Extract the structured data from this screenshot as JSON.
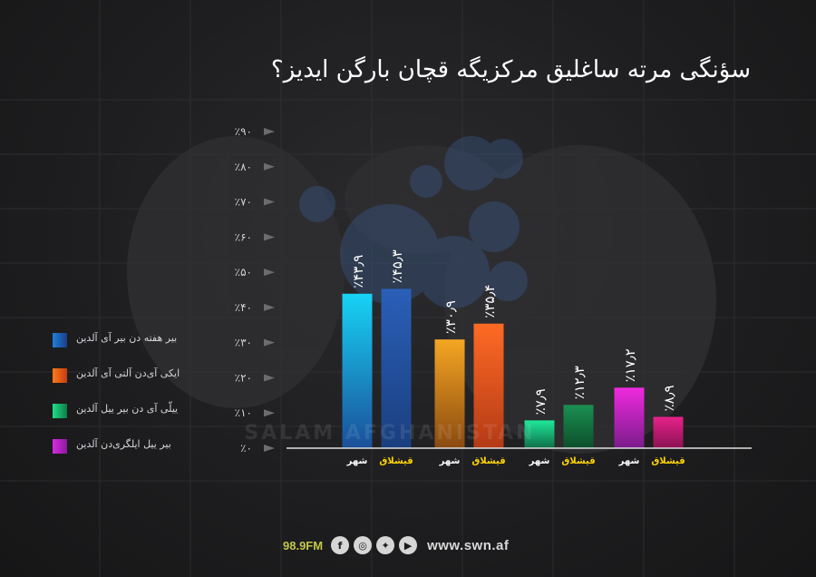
{
  "title": "سؤنگی مرته ساغلیق مرکزیگه قچان بارگن ایدیز؟",
  "chart_data": {
    "type": "bar",
    "title": "سؤنگی مرته ساغلیق مرکزیگه قچان بارگن ایدیز؟",
    "ylim": [
      0,
      90
    ],
    "yticks": [
      "٪۰",
      "٪۱۰",
      "٪۲۰",
      "٪۳۰",
      "٪۴۰",
      "٪۵۰",
      "٪۶۰",
      "٪۷۰",
      "٪۸۰",
      "٪۹۰"
    ],
    "categories": [
      "شهر",
      "قیشلاق",
      "شهر",
      "قیشلاق",
      "شهر",
      "قیشلاق",
      "شهر",
      "قیشلاق"
    ],
    "category_colors": [
      "#ffffff",
      "#ffd400",
      "#ffffff",
      "#ffd400",
      "#ffffff",
      "#ffd400",
      "#ffffff",
      "#ffd400"
    ],
    "values": [
      43.9,
      45.3,
      30.9,
      35.4,
      7.9,
      12.3,
      17.2,
      8.9
    ],
    "value_labels": [
      "٪۴۳٫۹",
      "٪۴۵٫۳",
      "٪۳۰٫۹",
      "٪۳۵٫۴",
      "٪۷٫۹",
      "٪۱۲٫۳",
      "٪۱۷٫۲",
      "٪۸٫۹"
    ],
    "bar_colors": [
      [
        "#17d3f5",
        "#1b4f9a"
      ],
      [
        "#2a5fb8",
        "#1a3f7e"
      ],
      [
        "#f5a623",
        "#8a4a10"
      ],
      [
        "#ff6a25",
        "#b33a16"
      ],
      [
        "#1fe89a",
        "#0f6e48"
      ],
      [
        "#1a9050",
        "#0d4e2c"
      ],
      [
        "#ef2adf",
        "#7a1c8a"
      ],
      [
        "#e6228a",
        "#8a1252"
      ]
    ],
    "legend": [
      {
        "label": "بیر هفته دن بیر آی آلدین",
        "colors": [
          "#1f7fd8",
          "#1b3e86"
        ]
      },
      {
        "label": "ایکی آی‌دن آلتی آی آلدین",
        "colors": [
          "#ff7a1a",
          "#c33d12"
        ]
      },
      {
        "label": "ییلّی آی دن بیر ییل آلدین",
        "colors": [
          "#1ee088",
          "#0f7a45"
        ]
      },
      {
        "label": "بیر ییل ایلگری‌دن آلدین",
        "colors": [
          "#d92ae0",
          "#8a1b9e"
        ]
      }
    ],
    "legend_position": "left",
    "grid": true
  },
  "footer": {
    "frequency": "98.9FM",
    "website": "www.swn.af",
    "icons": [
      "facebook-icon",
      "instagram-icon",
      "twitter-icon",
      "youtube-icon"
    ]
  },
  "watermark": {
    "latin": "SALAM AFGHANISTAN"
  }
}
